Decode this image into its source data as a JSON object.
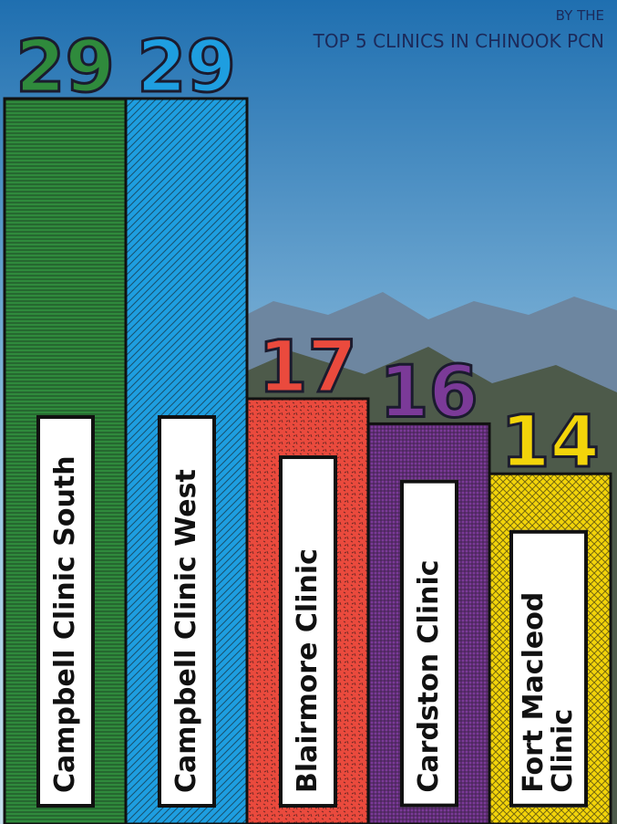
{
  "chart_data": {
    "type": "bar",
    "subtitle_top": "BY THE",
    "subtitle": "TOP 5 CLINICS IN CHINOOK PCN",
    "categories": [
      "Campbell Clinic South",
      "Campbell Clinic West",
      "Blairmore Clinic",
      "Cardston Clinic",
      "Fort Macleod Clinic"
    ],
    "values": [
      29,
      29,
      17,
      16,
      14
    ],
    "colors": [
      "#2f8a3c",
      "#1e9ee0",
      "#ea4a3d",
      "#7b3a98",
      "#f3d40a"
    ]
  }
}
